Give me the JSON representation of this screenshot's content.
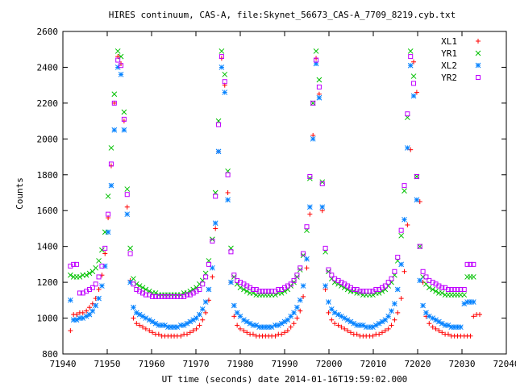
{
  "chart_data": {
    "type": "scatter",
    "title": "HIRES continuum, CAS-A, file:Skynet_56673_CAS-A_7709_8219.cyb.txt",
    "xlabel": "UT time (seconds) date 2014-01-16T19:59:02.000",
    "ylabel": "Counts",
    "xlim": [
      71940,
      72040
    ],
    "ylim": [
      800,
      2600
    ],
    "xticks": [
      "71940",
      "71950",
      "71960",
      "71970",
      "71980",
      "71990",
      "72000",
      "72010",
      "72020",
      "72030",
      "72040"
    ],
    "yticks": [
      "800",
      "1000",
      "1200",
      "1400",
      "1600",
      "1800",
      "2000",
      "2200",
      "2400",
      "2600"
    ],
    "legend_position": "top-right",
    "series_style": [
      {
        "name": "XL1",
        "marker": "plus",
        "color": "#ff0000"
      },
      {
        "name": "YR1",
        "marker": "cross",
        "color": "#00c000"
      },
      {
        "name": "XL2",
        "marker": "asterisk",
        "color": "#0080ff"
      },
      {
        "name": "YR2",
        "marker": "square",
        "color": "#c000ff"
      }
    ],
    "x": [
      71941.7,
      71942.4,
      71943.1,
      71943.8,
      71944.5,
      71945.3,
      71946.0,
      71946.7,
      71947.4,
      71948.1,
      71948.8,
      71949.5,
      71950.2,
      71950.9,
      71951.6,
      71952.4,
      71953.1,
      71953.8,
      71954.5,
      71955.2,
      71955.9,
      71956.6,
      71957.3,
      71958.0,
      71958.7,
      71959.5,
      71960.2,
      71960.9,
      71961.6,
      71962.3,
      71963.0,
      71963.7,
      71964.4,
      71965.1,
      71965.8,
      71966.6,
      71967.3,
      71968.0,
      71968.7,
      71969.4,
      71970.1,
      71970.8,
      71971.5,
      71972.2,
      71972.9,
      71973.7,
      71974.4,
      71975.1,
      71975.8,
      71976.5,
      71977.2,
      71977.9,
      71978.6,
      71979.3,
      71980.0,
      71980.8,
      71981.5,
      71982.2,
      71982.9,
      71983.6,
      71984.3,
      71985.0,
      71985.7,
      71986.4,
      71987.1,
      71987.9,
      71988.6,
      71989.3,
      71990.0,
      71990.7,
      71991.4,
      71992.1,
      71992.8,
      71993.5,
      71994.2,
      71995.0,
      71995.7,
      71996.4,
      71997.1,
      71997.8,
      71998.5,
      71999.2,
      71999.9,
      72000.6,
      72001.3,
      72002.1,
      72002.8,
      72003.5,
      72004.2,
      72004.9,
      72005.6,
      72006.3,
      72007.0,
      72007.7,
      72008.4,
      72009.2,
      72009.9,
      72010.6,
      72011.3,
      72012.0,
      72012.7,
      72013.4,
      72014.1,
      72014.8,
      72015.5,
      72016.3,
      72017.0,
      72017.7,
      72018.4,
      72019.1,
      72019.8,
      72020.5,
      72021.2,
      72021.9,
      72022.6,
      72023.4,
      72024.1,
      72024.8,
      72025.5,
      72026.2,
      72026.9,
      72027.6,
      72028.3,
      72029.0,
      72029.7,
      72030.5,
      72031.2,
      72031.9,
      72032.6,
      72033.3,
      72034.0,
      72034.7,
      72035.4,
      72036.1
    ],
    "series": [
      {
        "name": "XL1",
        "values": [
          930,
          1020,
          1020,
          1030,
          1030,
          1040,
          1060,
          1080,
          1110,
          1160,
          1240,
          1360,
          1560,
          1850,
          2200,
          2460,
          2420,
          2100,
          1620,
          1210,
          1000,
          970,
          960,
          950,
          940,
          930,
          920,
          910,
          910,
          900,
          900,
          900,
          900,
          900,
          900,
          900,
          910,
          910,
          920,
          930,
          940,
          960,
          990,
          1030,
          1100,
          1230,
          1500,
          1930,
          2450,
          2300,
          1700,
          1200,
          1010,
          960,
          940,
          930,
          920,
          910,
          910,
          900,
          900,
          900,
          900,
          900,
          900,
          900,
          910,
          910,
          920,
          930,
          950,
          970,
          1000,
          1040,
          1120,
          1280,
          1580,
          2020,
          2450,
          2250,
          1600,
          1160,
          1030,
          990,
          970,
          960,
          950,
          940,
          930,
          920,
          910,
          910,
          900,
          900,
          900,
          900,
          900,
          910,
          910,
          920,
          930,
          940,
          960,
          990,
          1030,
          1110,
          1260,
          1520,
          1940,
          2430,
          2260,
          1650,
          1200,
          1010,
          970,
          950,
          940,
          930,
          920,
          910,
          910,
          900,
          900,
          900,
          900,
          900,
          900,
          900,
          1010,
          1020,
          1020
        ]
      },
      {
        "name": "YR1",
        "values": [
          1240,
          1230,
          1230,
          1230,
          1240,
          1240,
          1250,
          1260,
          1280,
          1320,
          1380,
          1480,
          1680,
          1950,
          2250,
          2490,
          2460,
          2150,
          1720,
          1390,
          1220,
          1190,
          1180,
          1170,
          1160,
          1150,
          1140,
          1140,
          1130,
          1130,
          1130,
          1130,
          1130,
          1130,
          1130,
          1130,
          1140,
          1140,
          1150,
          1160,
          1170,
          1190,
          1210,
          1250,
          1320,
          1440,
          1700,
          2100,
          2490,
          2360,
          1820,
          1390,
          1230,
          1190,
          1170,
          1160,
          1150,
          1140,
          1140,
          1130,
          1130,
          1130,
          1130,
          1130,
          1130,
          1130,
          1140,
          1140,
          1150,
          1160,
          1180,
          1200,
          1230,
          1270,
          1350,
          1490,
          1780,
          2200,
          2490,
          2330,
          1760,
          1370,
          1260,
          1220,
          1200,
          1190,
          1180,
          1170,
          1160,
          1150,
          1150,
          1140,
          1140,
          1130,
          1130,
          1130,
          1130,
          1140,
          1140,
          1150,
          1160,
          1180,
          1200,
          1240,
          1320,
          1460,
          1710,
          2120,
          2490,
          2350,
          1790,
          1400,
          1230,
          1190,
          1170,
          1160,
          1150,
          1140,
          1140,
          1130,
          1130,
          1130,
          1130,
          1130,
          1130,
          1130,
          1230,
          1230,
          1230
        ]
      },
      {
        "name": "XL2",
        "values": [
          1100,
          990,
          990,
          1000,
          1000,
          1010,
          1020,
          1040,
          1070,
          1110,
          1180,
          1290,
          1480,
          1740,
          2050,
          2400,
          2360,
          2050,
          1580,
          1200,
          1060,
          1030,
          1020,
          1010,
          1000,
          990,
          980,
          970,
          960,
          960,
          960,
          950,
          950,
          950,
          950,
          960,
          960,
          970,
          980,
          990,
          1000,
          1020,
          1050,
          1090,
          1160,
          1280,
          1530,
          1930,
          2400,
          2260,
          1660,
          1200,
          1070,
          1030,
          1010,
          990,
          980,
          970,
          960,
          960,
          950,
          950,
          950,
          950,
          950,
          960,
          960,
          970,
          980,
          990,
          1010,
          1030,
          1060,
          1100,
          1180,
          1330,
          1620,
          2000,
          2420,
          2230,
          1620,
          1180,
          1090,
          1050,
          1030,
          1020,
          1010,
          1000,
          990,
          980,
          970,
          960,
          960,
          960,
          950,
          950,
          950,
          960,
          970,
          980,
          990,
          1010,
          1040,
          1080,
          1160,
          1300,
          1550,
          1950,
          2410,
          2240,
          1660,
          1210,
          1070,
          1030,
          1010,
          1000,
          990,
          980,
          970,
          960,
          960,
          950,
          950,
          950,
          950,
          1080,
          1090,
          1090,
          1090
        ]
      },
      {
        "name": "YR2",
        "values": [
          1290,
          1300,
          1300,
          1140,
          1140,
          1150,
          1160,
          1170,
          1190,
          1230,
          1290,
          1390,
          1580,
          1860,
          2200,
          2440,
          2410,
          2110,
          1690,
          1360,
          1190,
          1160,
          1150,
          1140,
          1130,
          1130,
          1120,
          1120,
          1120,
          1120,
          1120,
          1120,
          1120,
          1120,
          1120,
          1120,
          1120,
          1130,
          1130,
          1140,
          1150,
          1160,
          1190,
          1230,
          1300,
          1430,
          1680,
          2080,
          2460,
          2320,
          1800,
          1370,
          1240,
          1210,
          1200,
          1190,
          1180,
          1170,
          1160,
          1160,
          1150,
          1150,
          1150,
          1150,
          1150,
          1150,
          1160,
          1160,
          1170,
          1180,
          1190,
          1210,
          1240,
          1280,
          1360,
          1510,
          1790,
          2200,
          2440,
          2290,
          1750,
          1390,
          1270,
          1240,
          1220,
          1210,
          1200,
          1190,
          1180,
          1170,
          1160,
          1160,
          1150,
          1150,
          1150,
          1150,
          1150,
          1160,
          1160,
          1170,
          1180,
          1200,
          1220,
          1260,
          1340,
          1490,
          1740,
          2140,
          2460,
          2310,
          1790,
          1400,
          1260,
          1230,
          1210,
          1200,
          1190,
          1180,
          1170,
          1170,
          1160,
          1160,
          1160,
          1160,
          1160,
          1160,
          1300,
          1300,
          1300
        ]
      }
    ]
  }
}
